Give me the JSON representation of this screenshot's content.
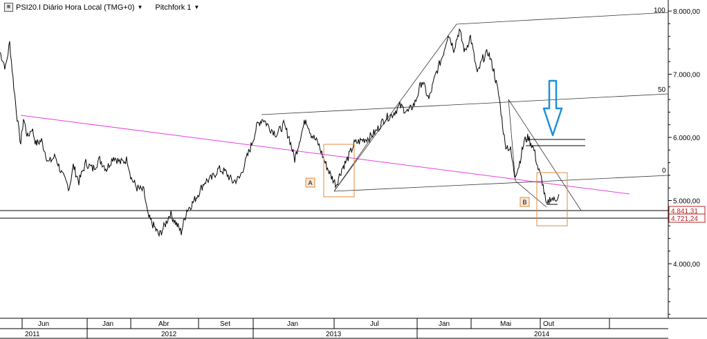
{
  "header": {
    "symbol_label": "PSI20.I Diário Hora Local (TMG+0)",
    "study_label": "Pitchfork 1"
  },
  "colors": {
    "price_line": "#000000",
    "trend_line": "#e040e0",
    "box_outline": "#e08a3a",
    "arrow": "#1e90d6",
    "price_tag": "#b22222"
  },
  "chart_data": {
    "type": "line",
    "ylim": [
      3000,
      8000
    ],
    "y_ticks": [
      {
        "value": 8000,
        "label": "8.000,00"
      },
      {
        "value": 7000,
        "label": "7.000,00"
      },
      {
        "value": 6000,
        "label": "6.000,00"
      },
      {
        "value": 5000,
        "label": "5.000,00"
      },
      {
        "value": 4000,
        "label": "4.000,00"
      }
    ],
    "price_tags": [
      {
        "value": 4841.31,
        "label": "4.841,31"
      },
      {
        "value": 4721.24,
        "label": "4.721,24"
      }
    ],
    "month_ticks": [
      "Jun",
      "Jan",
      "Abr",
      "Set",
      "Jan",
      "Jul",
      "Jan",
      "Mai",
      "Out"
    ],
    "year_ticks": [
      "2011",
      "2012",
      "2013",
      "2014"
    ],
    "pitchfork_labels": [
      "100",
      "50",
      "0"
    ],
    "annotations": [
      "A",
      "B"
    ],
    "series_note": "PSI20 daily close, approximate"
  }
}
